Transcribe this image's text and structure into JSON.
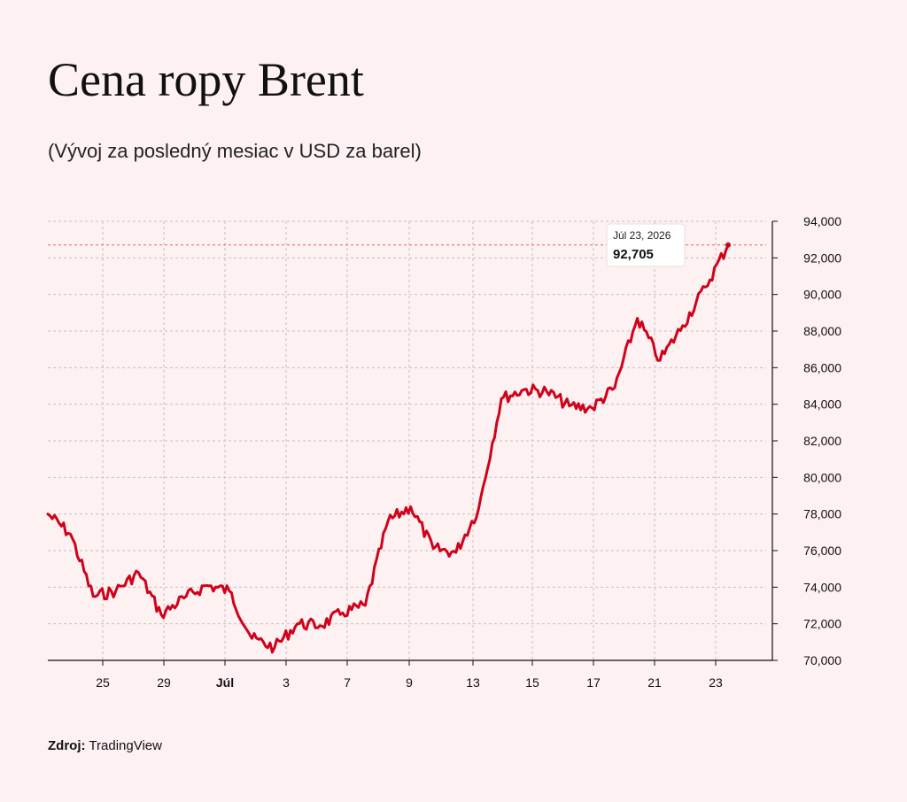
{
  "header": {
    "title": "Cena ropy Brent",
    "subtitle": "(Vývoj za posledný mesiac v USD za barel)"
  },
  "footer": {
    "source_label": "Zdroj:",
    "source_value": "TradingView"
  },
  "tooltip": {
    "date": "Júl 23, 2026",
    "value": "92,705"
  },
  "colors": {
    "line": "#d0021b",
    "background": "#fdf1f1",
    "grid": "#c9c0c0"
  },
  "chart_data": {
    "type": "line",
    "title": "Cena ropy Brent",
    "subtitle": "(Vývoj za posledný mesiac v USD za barel)",
    "xlabel": "",
    "ylabel": "",
    "y_axis_position": "right",
    "ylim": [
      70000,
      94000
    ],
    "y_ticks": [
      70000,
      72000,
      74000,
      76000,
      78000,
      80000,
      82000,
      84000,
      86000,
      88000,
      90000,
      92000,
      94000
    ],
    "y_tick_labels": [
      "70,000",
      "72,000",
      "74,000",
      "76,000",
      "78,000",
      "80,000",
      "82,000",
      "84,000",
      "86,000",
      "88,000",
      "90,000",
      "92,000",
      "94,000"
    ],
    "x_ticks": [
      {
        "label": "25",
        "bold": false,
        "x": "Jún 25"
      },
      {
        "label": "29",
        "bold": false,
        "x": "Jún 29"
      },
      {
        "label": "Júl",
        "bold": true,
        "x": "Júl 1"
      },
      {
        "label": "3",
        "bold": false,
        "x": "Júl 3"
      },
      {
        "label": "7",
        "bold": false,
        "x": "Júl 7"
      },
      {
        "label": "9",
        "bold": false,
        "x": "Júl 9"
      },
      {
        "label": "13",
        "bold": false,
        "x": "Júl 13"
      },
      {
        "label": "15",
        "bold": false,
        "x": "Júl 15"
      },
      {
        "label": "17",
        "bold": false,
        "x": "Júl 17"
      },
      {
        "label": "21",
        "bold": false,
        "x": "Júl 21"
      },
      {
        "label": "23",
        "bold": false,
        "x": "Júl 23"
      }
    ],
    "grid": true,
    "series": [
      {
        "name": "Brent",
        "x": [
          "Jún 23",
          "Jún 24",
          "Jún 25",
          "Jún 26",
          "Jún 27",
          "Jún 28",
          "Jún 29",
          "Jún 30",
          "Júl 1",
          "Júl 2",
          "Júl 3",
          "Júl 4",
          "Júl 5",
          "Júl 6",
          "Júl 7",
          "Júl 8",
          "Júl 9",
          "Júl 10",
          "Júl 11",
          "Júl 12",
          "Júl 13",
          "Júl 14",
          "Júl 15",
          "Júl 16",
          "Júl 17",
          "Júl 18",
          "Júl 19",
          "Júl 20",
          "Júl 21",
          "Júl 22",
          "Júl 23"
        ],
        "values": [
          78000,
          76900,
          73500,
          73800,
          74800,
          72500,
          73400,
          74100,
          73800,
          71200,
          70700,
          72000,
          71900,
          72600,
          73000,
          77600,
          78400,
          76100,
          75900,
          78300,
          84300,
          84800,
          84700,
          83900,
          83800,
          84900,
          88700,
          86400,
          88300,
          90400,
          92705
        ]
      }
    ],
    "last_point": {
      "x": "Júl 23",
      "value": 92705
    },
    "reference_line": 92705
  }
}
